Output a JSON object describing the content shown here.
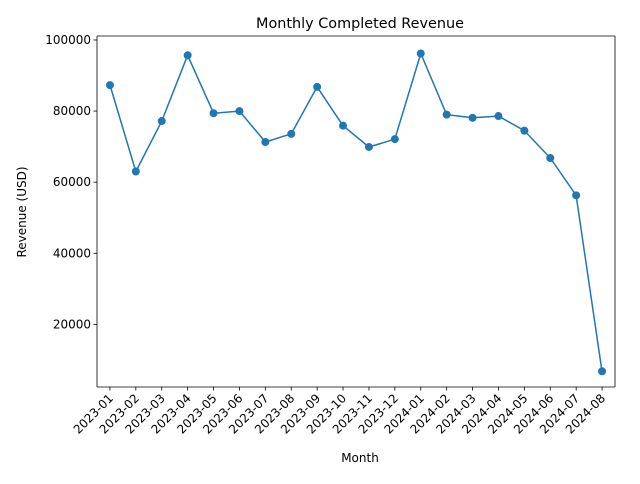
{
  "chart_data": {
    "type": "line",
    "title": "Monthly Completed Revenue",
    "xlabel": "Month",
    "ylabel": "Revenue (USD)",
    "categories": [
      "2023-01",
      "2023-02",
      "2023-03",
      "2023-04",
      "2023-05",
      "2023-06",
      "2023-07",
      "2023-08",
      "2023-09",
      "2023-10",
      "2023-11",
      "2023-12",
      "2024-01",
      "2024-02",
      "2024-03",
      "2024-04",
      "2024-05",
      "2024-06",
      "2024-07",
      "2024-08"
    ],
    "series": [
      {
        "values": [
          87300,
          63000,
          77200,
          95700,
          79400,
          80000,
          71300,
          73600,
          86800,
          75900,
          69900,
          72100,
          96200,
          79000,
          78100,
          78600,
          74500,
          66800,
          56300,
          6800
        ],
        "color": "#1f77b4"
      }
    ],
    "yticks": [
      20000,
      40000,
      60000,
      80000,
      100000
    ],
    "ylim": [
      2380,
      101120
    ],
    "grid": false,
    "legend": "none",
    "marker": "circle"
  }
}
